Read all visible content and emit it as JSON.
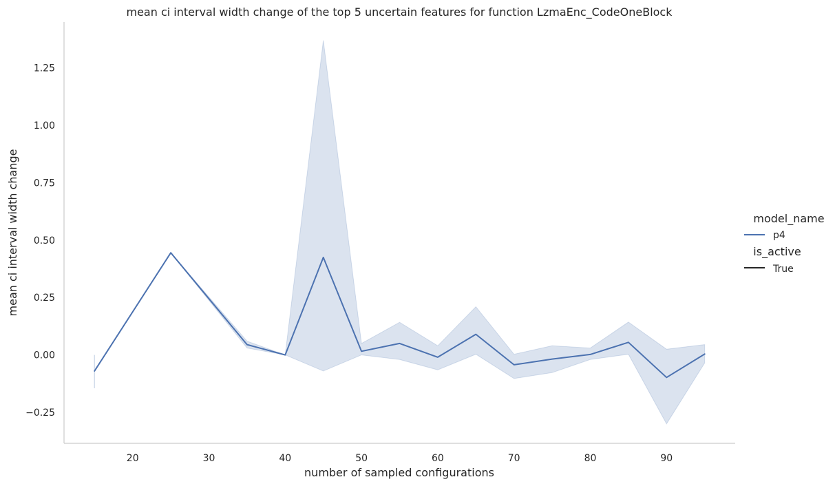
{
  "chart_data": {
    "type": "line",
    "title": "mean ci interval width change of the top 5 uncertain features for function LzmaEnc_CodeOneBlock",
    "xlabel": "number of sampled configurations",
    "ylabel": "mean ci interval width change",
    "xlim": [
      11,
      99
    ],
    "ylim": [
      -0.385,
      1.45
    ],
    "xticks": [
      20,
      30,
      40,
      50,
      60,
      70,
      80,
      90
    ],
    "yticks": [
      -0.25,
      0.0,
      0.25,
      0.5,
      0.75,
      1.0,
      1.25
    ],
    "ytick_labels": [
      "−0.25",
      "0.00",
      "0.25",
      "0.50",
      "0.75",
      "1.00",
      "1.25"
    ],
    "grid": false,
    "series": [
      {
        "name": "p4",
        "color": "#4c72b0",
        "x": [
          15,
          25,
          35,
          40,
          45,
          50,
          55,
          60,
          65,
          70,
          75,
          80,
          85,
          90,
          95
        ],
        "y": [
          -0.07,
          0.445,
          0.045,
          0.0,
          0.425,
          0.016,
          0.05,
          -0.01,
          0.09,
          -0.043,
          -0.018,
          0.002,
          0.055,
          -0.098,
          0.004
        ],
        "ci_low": [
          -0.145,
          0.445,
          0.03,
          0.0,
          -0.07,
          0.0,
          -0.02,
          -0.065,
          0.003,
          -0.103,
          -0.077,
          -0.02,
          0.003,
          -0.3,
          -0.035
        ],
        "ci_high": [
          0.0,
          0.445,
          0.06,
          0.0,
          1.37,
          0.05,
          0.142,
          0.04,
          0.21,
          0.003,
          0.04,
          0.03,
          0.143,
          0.025,
          0.045
        ]
      }
    ],
    "legend": {
      "placement": "right",
      "groups": [
        {
          "title": "model_name",
          "entries": [
            {
              "label": "p4",
              "color": "#4c72b0"
            }
          ]
        },
        {
          "title": "is_active",
          "entries": [
            {
              "label": "True",
              "color": "#262626"
            }
          ]
        }
      ]
    }
  }
}
